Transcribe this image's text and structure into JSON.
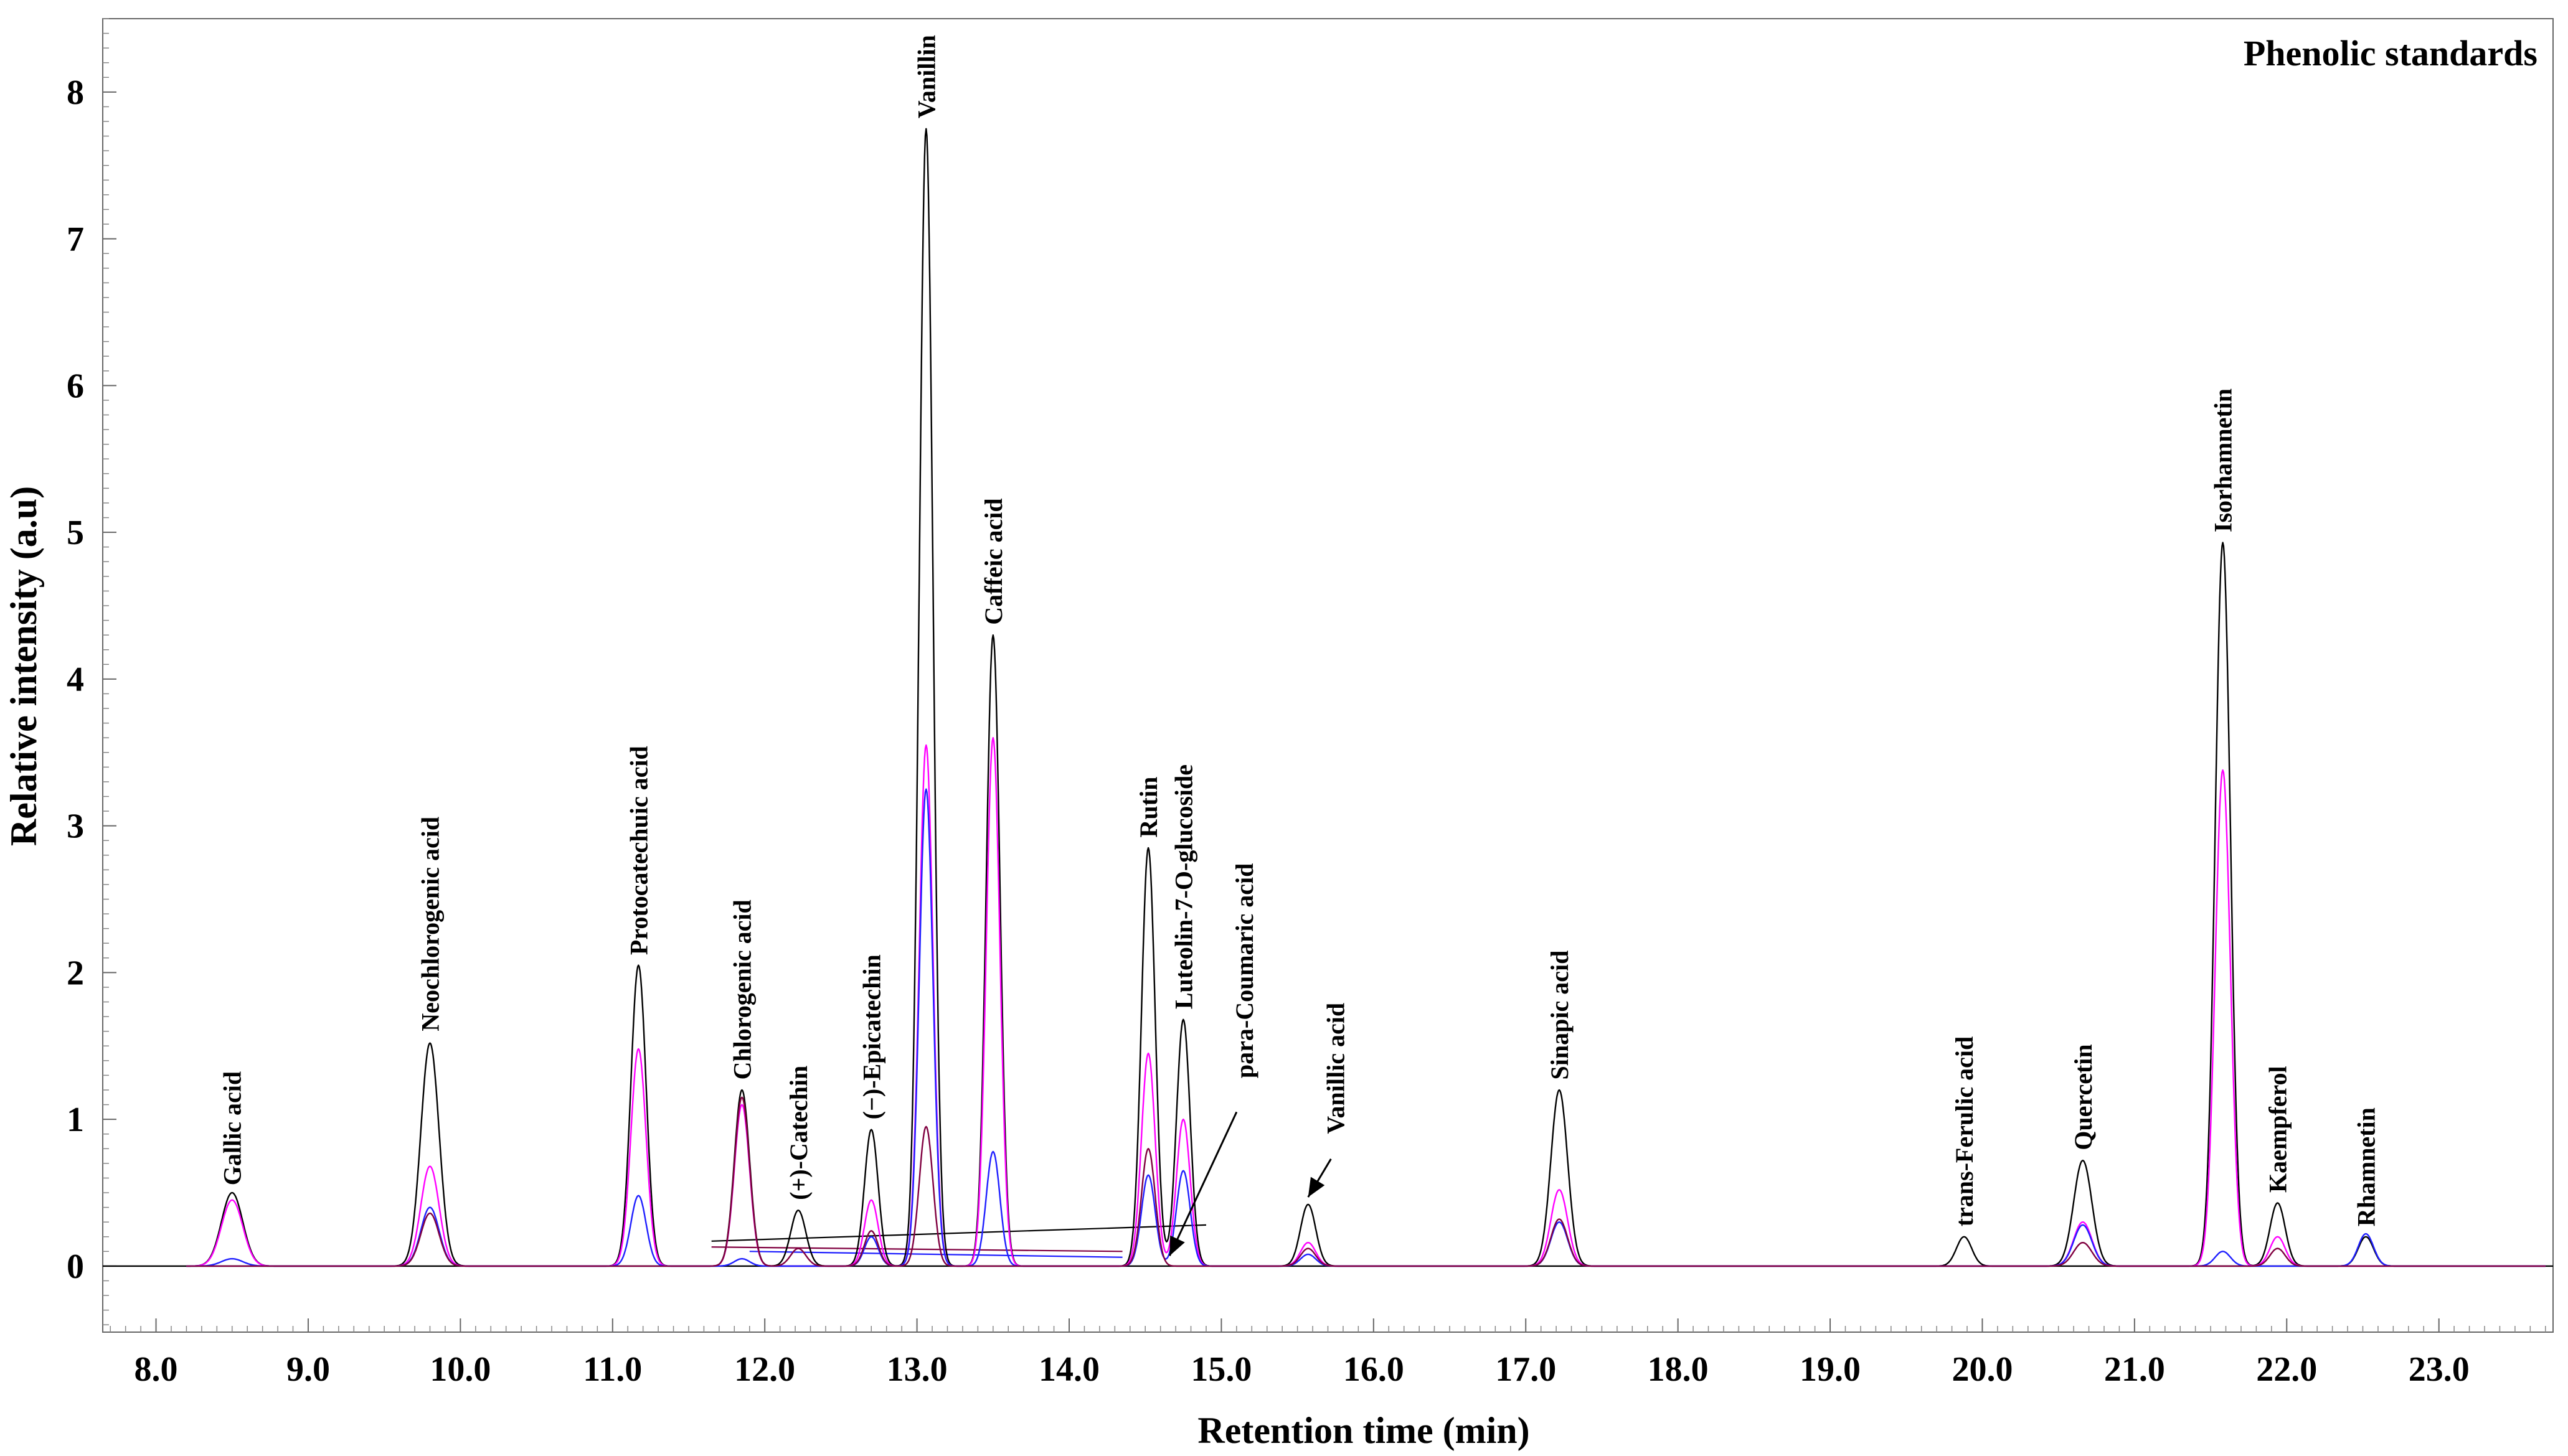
{
  "chart_data": {
    "type": "line",
    "title": "Phenolic standards",
    "xlabel": "Retention time (min)",
    "ylabel": "Relative intensity (a.u)",
    "xlim": [
      7.65,
      23.75
    ],
    "ylim": [
      -0.45,
      8.5
    ],
    "x_ticks": [
      "8.0",
      "9.0",
      "10.0",
      "11.0",
      "12.0",
      "13.0",
      "14.0",
      "15.0",
      "16.0",
      "17.0",
      "18.0",
      "19.0",
      "20.0",
      "21.0",
      "22.0",
      "23.0"
    ],
    "y_ticks": [
      "0",
      "1",
      "2",
      "3",
      "4",
      "5",
      "6",
      "7",
      "8"
    ],
    "trace_colors": [
      "#000000",
      "#ff00ff",
      "#1f1fff",
      "#800040"
    ],
    "series": [
      {
        "name": "trace-black",
        "color": "#000000",
        "peaks": [
          {
            "t": 8.5,
            "h": 0.5,
            "w": 0.07
          },
          {
            "t": 9.8,
            "h": 1.52,
            "w": 0.06
          },
          {
            "t": 11.17,
            "h": 2.05,
            "w": 0.05
          },
          {
            "t": 11.85,
            "h": 1.2,
            "w": 0.05
          },
          {
            "t": 12.22,
            "h": 0.38,
            "w": 0.05
          },
          {
            "t": 12.7,
            "h": 0.93,
            "w": 0.045
          },
          {
            "t": 13.06,
            "h": 7.75,
            "w": 0.045
          },
          {
            "t": 13.5,
            "h": 4.3,
            "w": 0.045
          },
          {
            "t": 14.52,
            "h": 2.85,
            "w": 0.045
          },
          {
            "t": 14.75,
            "h": 1.68,
            "w": 0.045
          },
          {
            "t": 15.57,
            "h": 0.42,
            "w": 0.05
          },
          {
            "t": 17.22,
            "h": 1.2,
            "w": 0.055
          },
          {
            "t": 19.88,
            "h": 0.2,
            "w": 0.05
          },
          {
            "t": 20.66,
            "h": 0.72,
            "w": 0.06
          },
          {
            "t": 21.58,
            "h": 4.93,
            "w": 0.05
          },
          {
            "t": 21.94,
            "h": 0.43,
            "w": 0.05
          },
          {
            "t": 22.52,
            "h": 0.2,
            "w": 0.05
          }
        ]
      },
      {
        "name": "trace-magenta",
        "color": "#ff00ff",
        "peaks": [
          {
            "t": 8.5,
            "h": 0.45,
            "w": 0.07
          },
          {
            "t": 9.8,
            "h": 0.68,
            "w": 0.06
          },
          {
            "t": 11.17,
            "h": 1.48,
            "w": 0.05
          },
          {
            "t": 11.85,
            "h": 1.1,
            "w": 0.05
          },
          {
            "t": 12.7,
            "h": 0.45,
            "w": 0.045
          },
          {
            "t": 13.06,
            "h": 3.55,
            "w": 0.045
          },
          {
            "t": 13.5,
            "h": 3.6,
            "w": 0.045
          },
          {
            "t": 14.52,
            "h": 1.45,
            "w": 0.045
          },
          {
            "t": 14.75,
            "h": 1.0,
            "w": 0.045
          },
          {
            "t": 15.57,
            "h": 0.16,
            "w": 0.05
          },
          {
            "t": 17.22,
            "h": 0.52,
            "w": 0.055
          },
          {
            "t": 20.66,
            "h": 0.3,
            "w": 0.06
          },
          {
            "t": 21.58,
            "h": 3.38,
            "w": 0.05
          },
          {
            "t": 21.94,
            "h": 0.2,
            "w": 0.05
          }
        ]
      },
      {
        "name": "trace-blue",
        "color": "#1f1fff",
        "peaks": [
          {
            "t": 8.5,
            "h": 0.05,
            "w": 0.07
          },
          {
            "t": 9.8,
            "h": 0.4,
            "w": 0.06
          },
          {
            "t": 11.17,
            "h": 0.48,
            "w": 0.05
          },
          {
            "t": 11.85,
            "h": 0.05,
            "w": 0.05
          },
          {
            "t": 12.7,
            "h": 0.2,
            "w": 0.045
          },
          {
            "t": 13.06,
            "h": 3.25,
            "w": 0.045
          },
          {
            "t": 13.5,
            "h": 0.78,
            "w": 0.045
          },
          {
            "t": 14.52,
            "h": 0.62,
            "w": 0.045
          },
          {
            "t": 14.75,
            "h": 0.65,
            "w": 0.045
          },
          {
            "t": 15.57,
            "h": 0.08,
            "w": 0.05
          },
          {
            "t": 17.22,
            "h": 0.3,
            "w": 0.055
          },
          {
            "t": 20.66,
            "h": 0.28,
            "w": 0.06
          },
          {
            "t": 21.58,
            "h": 0.1,
            "w": 0.05
          },
          {
            "t": 22.52,
            "h": 0.22,
            "w": 0.05
          }
        ]
      },
      {
        "name": "trace-maroon",
        "color": "#800040",
        "peaks": [
          {
            "t": 9.8,
            "h": 0.36,
            "w": 0.06
          },
          {
            "t": 11.85,
            "h": 1.15,
            "w": 0.05
          },
          {
            "t": 12.22,
            "h": 0.12,
            "w": 0.05
          },
          {
            "t": 12.7,
            "h": 0.24,
            "w": 0.045
          },
          {
            "t": 13.06,
            "h": 0.95,
            "w": 0.045
          },
          {
            "t": 14.52,
            "h": 0.8,
            "w": 0.045
          },
          {
            "t": 15.57,
            "h": 0.12,
            "w": 0.05
          },
          {
            "t": 17.22,
            "h": 0.32,
            "w": 0.055
          },
          {
            "t": 20.66,
            "h": 0.16,
            "w": 0.06
          },
          {
            "t": 21.94,
            "h": 0.12,
            "w": 0.05
          }
        ]
      }
    ],
    "baseline_segments": [
      {
        "color": "#000000",
        "x": [
          11.65,
          14.9
        ],
        "y": [
          0.17,
          0.28
        ]
      },
      {
        "color": "#800040",
        "x": [
          11.65,
          14.35
        ],
        "y": [
          0.13,
          0.1
        ]
      },
      {
        "color": "#1f1fff",
        "x": [
          11.9,
          14.35
        ],
        "y": [
          0.1,
          0.06
        ]
      }
    ],
    "peak_labels": [
      {
        "text": "Gallic acid",
        "t": 8.5,
        "y": 0.55
      },
      {
        "text": "Neochlorogenic acid",
        "t": 9.8,
        "y": 1.6
      },
      {
        "text": "Protocatechuic acid",
        "t": 11.17,
        "y": 2.12
      },
      {
        "text": "Chlorogenic acid",
        "t": 11.85,
        "y": 1.27
      },
      {
        "text": "(+)-Catechin",
        "t": 12.22,
        "y": 0.45
      },
      {
        "text": "(−)-Epicatechin",
        "t": 12.7,
        "y": 1.0
      },
      {
        "text": "Vanillin",
        "t": 13.06,
        "y": 7.82
      },
      {
        "text": "Caffeic acid",
        "t": 13.5,
        "y": 4.37
      },
      {
        "text": "Rutin",
        "t": 14.52,
        "y": 2.92
      },
      {
        "text": "Luteolin-7-O-glucoside",
        "t": 14.75,
        "y": 1.75
      },
      {
        "text": "para-Coumaric acid",
        "t": 15.15,
        "y": 1.28
      },
      {
        "text": "Vanillic acid",
        "t": 15.75,
        "y": 0.9
      },
      {
        "text": "Sinapic acid",
        "t": 17.22,
        "y": 1.27
      },
      {
        "text": "trans-Ferulic acid",
        "t": 19.88,
        "y": 0.27
      },
      {
        "text": "Quercetin",
        "t": 20.66,
        "y": 0.79
      },
      {
        "text": "Isorhamnetin",
        "t": 21.58,
        "y": 5.0
      },
      {
        "text": "Kaempferol",
        "t": 21.94,
        "y": 0.5
      },
      {
        "text": "Rhamnetin",
        "t": 22.52,
        "y": 0.27
      }
    ],
    "arrows": [
      {
        "name": "para-coumaric-arrow",
        "from": [
          15.1,
          1.05
        ],
        "to": [
          14.66,
          0.07
        ]
      },
      {
        "name": "vanillic-arrow",
        "from": [
          15.72,
          0.73
        ],
        "to": [
          15.57,
          0.47
        ]
      }
    ]
  }
}
